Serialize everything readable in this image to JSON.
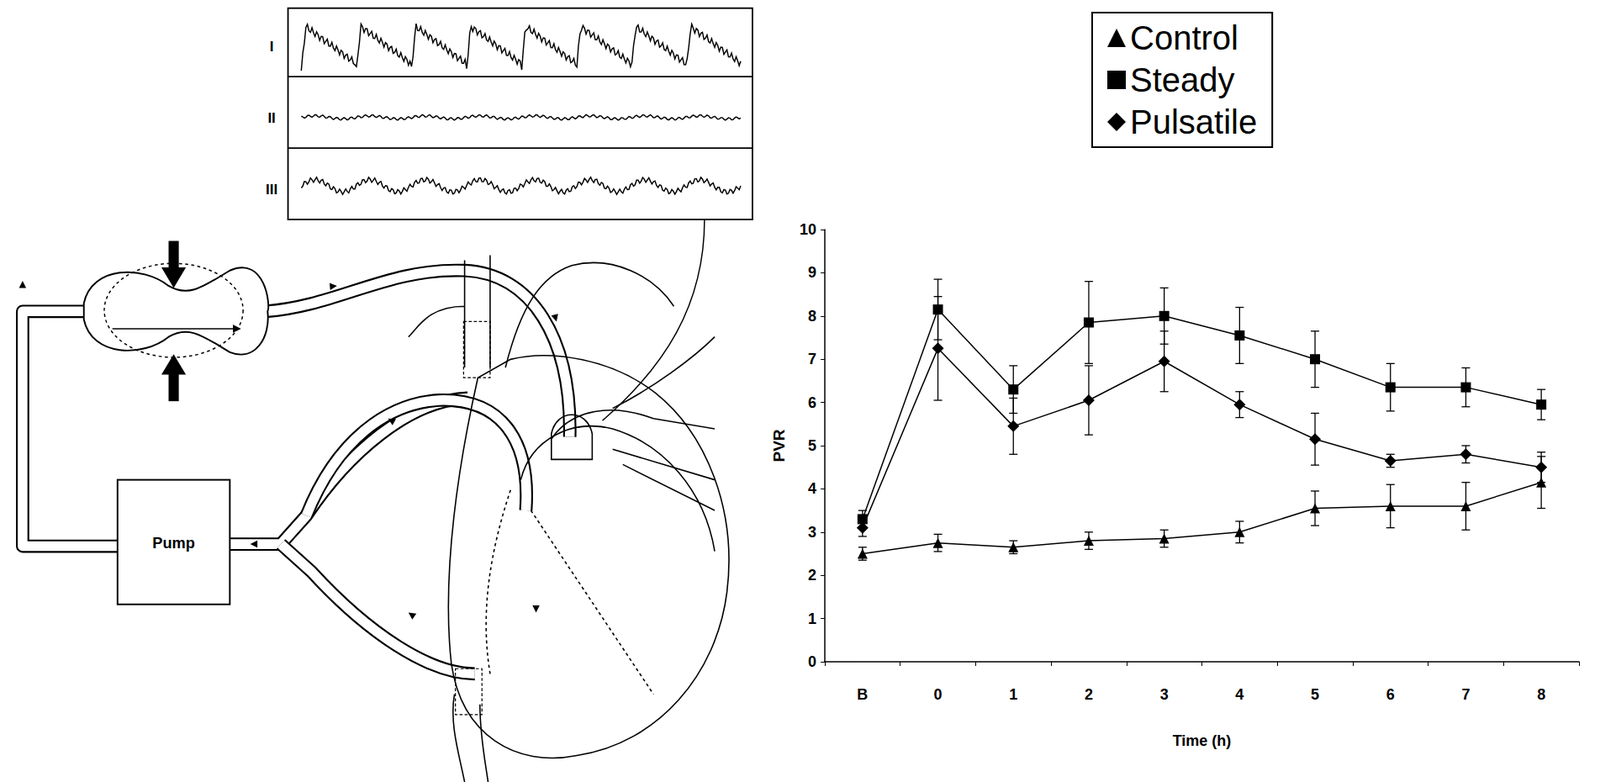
{
  "chart_data": {
    "type": "line",
    "y_label": "PVR",
    "x_label": "Time (h)",
    "categories": [
      "B",
      "0",
      "1",
      "2",
      "3",
      "4",
      "5",
      "6",
      "7",
      "8"
    ],
    "ylim": [
      0,
      10
    ],
    "yticks": [
      0,
      1,
      2,
      3,
      4,
      5,
      6,
      7,
      8,
      9,
      10
    ],
    "grid": false,
    "legend": "top-right",
    "series": [
      {
        "name": "Control",
        "color": "#000000",
        "marker": "triangle",
        "line_style": "solid",
        "values": [
          2.5,
          2.75,
          2.65,
          2.8,
          2.85,
          3.0,
          3.55,
          3.6,
          3.6,
          4.15
        ],
        "errors": [
          0.15,
          0.2,
          0.15,
          0.2,
          0.2,
          0.25,
          0.4,
          0.5,
          0.55,
          0.6
        ]
      },
      {
        "name": "Steady",
        "color": "#000000",
        "marker": "square",
        "line_style": "solid",
        "values": [
          3.3,
          8.15,
          6.3,
          7.85,
          8.0,
          7.55,
          7.0,
          6.35,
          6.35,
          5.95
        ],
        "errors": [
          0.2,
          0.7,
          0.55,
          0.95,
          0.65,
          0.65,
          0.65,
          0.55,
          0.45,
          0.35
        ]
      },
      {
        "name": "Pulsatile",
        "color": "#000000",
        "marker": "diamond",
        "line_style": "solid",
        "values": [
          3.1,
          7.25,
          5.45,
          6.05,
          6.95,
          5.95,
          5.15,
          4.65,
          4.8,
          4.5
        ],
        "errors": [
          0.2,
          1.2,
          0.65,
          0.8,
          0.7,
          0.3,
          0.6,
          0.15,
          0.2,
          0.35
        ]
      }
    ]
  },
  "diagram": {
    "trace_labels": [
      "I",
      "II",
      "III"
    ],
    "pump_label": "Pump"
  }
}
